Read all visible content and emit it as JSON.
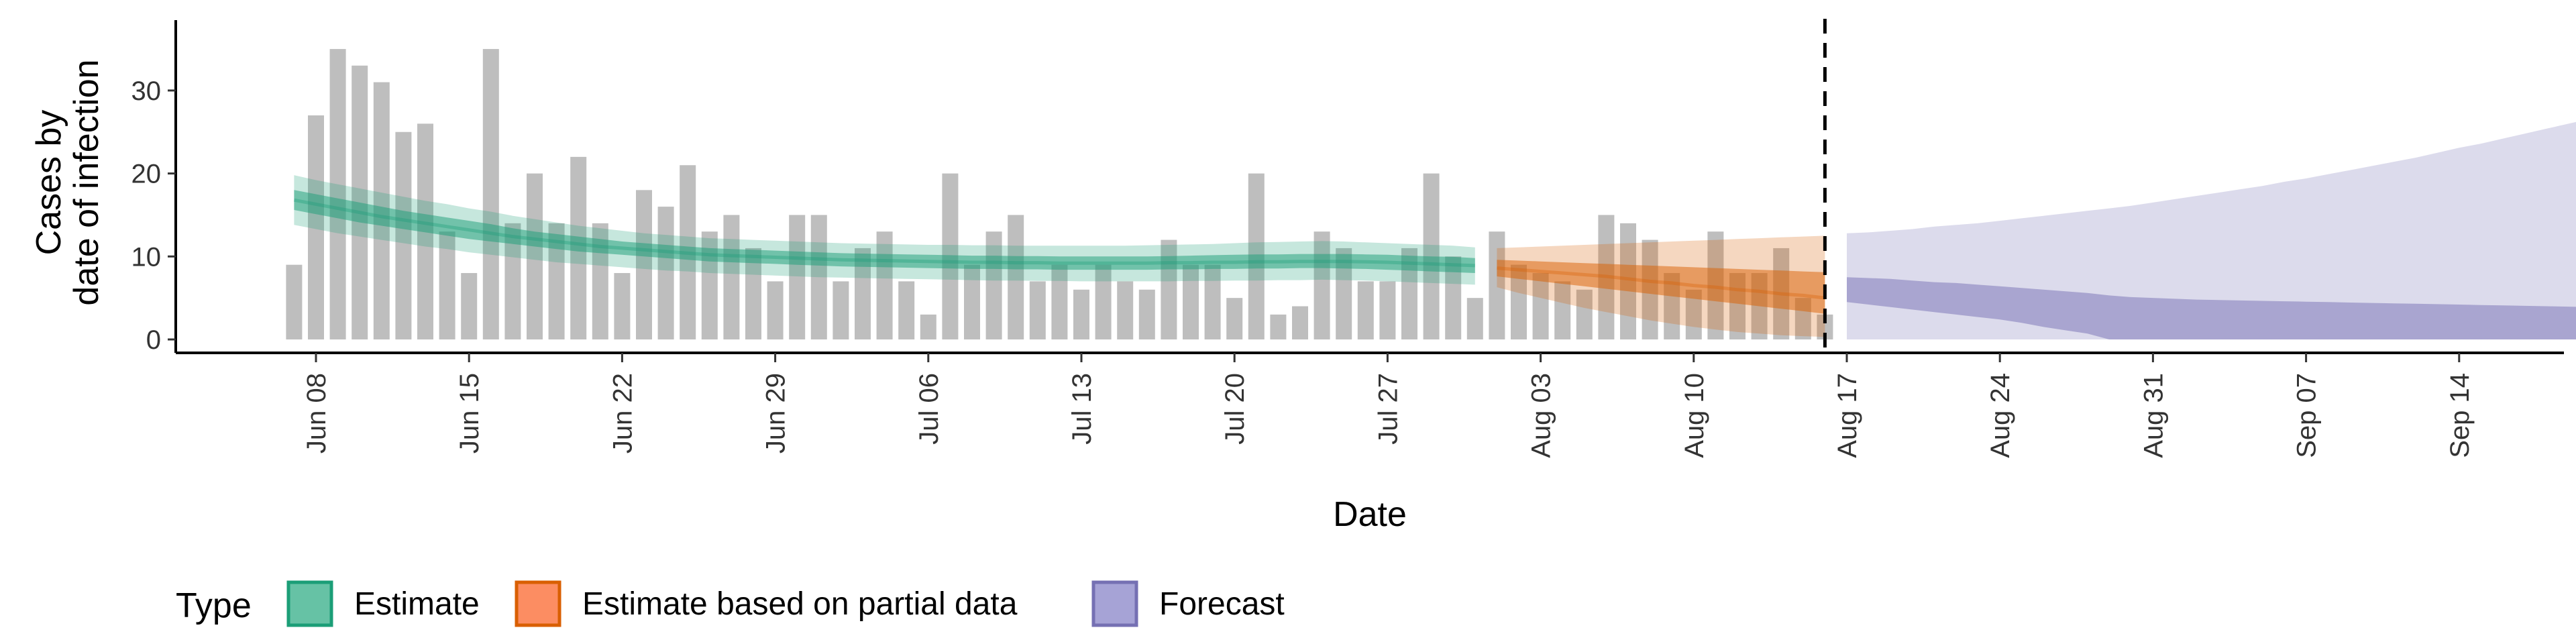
{
  "chart_data": {
    "type": "bar",
    "title": "",
    "xlabel": "Date",
    "ylabel_line1": "Cases by",
    "ylabel_line2": "date of infection",
    "ylim": [
      -2,
      38
    ],
    "y_ticks": [
      0,
      10,
      20,
      30
    ],
    "grid": false,
    "legend": {
      "position": "bottom-left",
      "title": "Type",
      "entries": [
        {
          "label": "Estimate",
          "fill": "#66c2a5",
          "stroke": "#1b9e77"
        },
        {
          "label": "Estimate based on partial data",
          "fill": "#fc8d62",
          "stroke": "#d95f02"
        },
        {
          "label": "Forecast",
          "fill": "#a6a3d6",
          "stroke": "#7570b3"
        }
      ]
    },
    "x_tick_labels": [
      "Jun 08",
      "Jun 15",
      "Jun 22",
      "Jun 29",
      "Jul 06",
      "Jul 13",
      "Jul 20",
      "Jul 27",
      "Aug 03",
      "Aug 10",
      "Aug 17",
      "Aug 24",
      "Aug 31",
      "Sep 07",
      "Sep 14"
    ],
    "first_bar_date": "Jun 07",
    "forecast_start_marker": "Aug 16",
    "bars": {
      "name": "Reported cases",
      "color": "#bebebe",
      "values": [
        9,
        27,
        35,
        33,
        31,
        25,
        26,
        13,
        8,
        35,
        14,
        20,
        14,
        22,
        14,
        8,
        18,
        16,
        21,
        13,
        15,
        11,
        7,
        15,
        15,
        7,
        11,
        13,
        7,
        3,
        20,
        9,
        13,
        15,
        7,
        9,
        6,
        9,
        7,
        6,
        12,
        9,
        9,
        5,
        20,
        3,
        4,
        13,
        11,
        7,
        7,
        11,
        20,
        10,
        5,
        13,
        9,
        8,
        7,
        6,
        15,
        14,
        12,
        8,
        6,
        13,
        8,
        8,
        11,
        5,
        3
      ]
    },
    "series": [
      {
        "name": "Estimate",
        "color": "#1b9e77",
        "start_date": "Jun 07",
        "median": [
          16.8,
          16.3,
          15.8,
          15.3,
          14.8,
          14.4,
          14.0,
          13.6,
          13.2,
          12.8,
          12.4,
          12.1,
          11.8,
          11.5,
          11.2,
          11.0,
          10.8,
          10.6,
          10.4,
          10.2,
          10.1,
          10.0,
          9.9,
          9.8,
          9.7,
          9.6,
          9.55,
          9.5,
          9.45,
          9.4,
          9.35,
          9.3,
          9.3,
          9.25,
          9.25,
          9.2,
          9.2,
          9.2,
          9.2,
          9.2,
          9.25,
          9.25,
          9.3,
          9.3,
          9.35,
          9.35,
          9.4,
          9.4,
          9.4,
          9.35,
          9.3,
          9.2,
          9.1,
          9.0,
          8.9
        ],
        "inner_lo": [
          15.6,
          15.1,
          14.6,
          14.1,
          13.7,
          13.3,
          12.9,
          12.5,
          12.1,
          11.8,
          11.5,
          11.2,
          10.9,
          10.6,
          10.4,
          10.2,
          10.0,
          9.8,
          9.6,
          9.4,
          9.3,
          9.2,
          9.1,
          9.0,
          8.9,
          8.8,
          8.75,
          8.7,
          8.65,
          8.6,
          8.55,
          8.5,
          8.5,
          8.45,
          8.45,
          8.4,
          8.4,
          8.4,
          8.4,
          8.4,
          8.45,
          8.45,
          8.5,
          8.5,
          8.55,
          8.55,
          8.6,
          8.6,
          8.55,
          8.5,
          8.4,
          8.3,
          8.2,
          8.1,
          8.0
        ],
        "inner_hi": [
          18.0,
          17.5,
          17.0,
          16.5,
          16.0,
          15.5,
          15.1,
          14.7,
          14.3,
          13.9,
          13.4,
          13.0,
          12.7,
          12.4,
          12.1,
          11.8,
          11.6,
          11.4,
          11.2,
          11.0,
          10.9,
          10.8,
          10.7,
          10.6,
          10.5,
          10.4,
          10.35,
          10.3,
          10.25,
          10.2,
          10.15,
          10.1,
          10.1,
          10.05,
          10.05,
          10.0,
          10.0,
          10.0,
          10.0,
          10.0,
          10.05,
          10.1,
          10.15,
          10.2,
          10.25,
          10.25,
          10.3,
          10.3,
          10.3,
          10.25,
          10.2,
          10.1,
          10.0,
          9.95,
          9.8
        ],
        "outer_lo": [
          13.8,
          13.3,
          12.8,
          12.4,
          12.0,
          11.6,
          11.2,
          10.9,
          10.5,
          10.2,
          9.9,
          9.6,
          9.3,
          9.1,
          8.9,
          8.7,
          8.5,
          8.3,
          8.2,
          8.0,
          7.9,
          7.8,
          7.7,
          7.6,
          7.5,
          7.45,
          7.4,
          7.35,
          7.3,
          7.25,
          7.2,
          7.15,
          7.1,
          7.1,
          7.05,
          7.05,
          7.0,
          7.0,
          7.0,
          7.0,
          7.0,
          7.05,
          7.05,
          7.1,
          7.1,
          7.15,
          7.15,
          7.2,
          7.15,
          7.1,
          7.0,
          6.9,
          6.8,
          6.7,
          6.6
        ],
        "outer_hi": [
          19.8,
          19.2,
          18.7,
          18.2,
          17.7,
          17.2,
          16.7,
          16.3,
          15.8,
          15.4,
          14.9,
          14.5,
          14.1,
          13.7,
          13.4,
          13.1,
          12.8,
          12.6,
          12.4,
          12.2,
          12.1,
          12.0,
          11.9,
          11.8,
          11.7,
          11.6,
          11.55,
          11.5,
          11.45,
          11.4,
          11.4,
          11.35,
          11.35,
          11.3,
          11.3,
          11.3,
          11.3,
          11.3,
          11.3,
          11.35,
          11.4,
          11.45,
          11.5,
          11.6,
          11.7,
          11.75,
          11.8,
          11.85,
          11.8,
          11.7,
          11.6,
          11.5,
          11.4,
          11.3,
          11.1
        ]
      },
      {
        "name": "Estimate based on partial data",
        "color": "#d95f02",
        "start_date": "Aug 01",
        "median": [
          8.6,
          8.4,
          8.2,
          8.0,
          7.8,
          7.6,
          7.3,
          7.0,
          6.8,
          6.5,
          6.3,
          6.0,
          5.8,
          5.5,
          5.3,
          5.0
        ],
        "inner_lo": [
          7.6,
          7.3,
          7.0,
          6.7,
          6.4,
          6.1,
          5.8,
          5.5,
          5.2,
          4.9,
          4.6,
          4.3,
          4.0,
          3.7,
          3.4,
          3.1
        ],
        "inner_hi": [
          9.6,
          9.5,
          9.4,
          9.3,
          9.2,
          9.1,
          9.0,
          8.9,
          8.8,
          8.7,
          8.6,
          8.5,
          8.4,
          8.3,
          8.2,
          8.1
        ],
        "outer_lo": [
          6.3,
          5.6,
          5.0,
          4.4,
          3.8,
          3.3,
          2.8,
          2.3,
          1.9,
          1.5,
          1.2,
          0.9,
          0.7,
          0.5,
          0.4,
          0.3
        ],
        "outer_hi": [
          11.0,
          11.1,
          11.2,
          11.3,
          11.4,
          11.5,
          11.6,
          11.7,
          11.8,
          11.9,
          12.0,
          12.1,
          12.2,
          12.3,
          12.4,
          12.5
        ]
      },
      {
        "name": "Forecast",
        "color": "#7570b3",
        "start_date": "Aug 17",
        "inner_lo": [
          4.5,
          4.2,
          3.9,
          3.6,
          3.3,
          3.0,
          2.7,
          2.4,
          2.0,
          1.5,
          1.1,
          0.7,
          0.0,
          0.0,
          0.0,
          0.0,
          0.0,
          0.0,
          0.0,
          0.0,
          0.0,
          0.0,
          0.0,
          0.0,
          0.0,
          0.0,
          0.0,
          0.0,
          0.0,
          0.0,
          0.0,
          0.0,
          0.0,
          0.0,
          0.0,
          0.0,
          0.0,
          0.0,
          0.0,
          0.0,
          0.0,
          0.0,
          0.0,
          0.0,
          0.0,
          0.0,
          0.0,
          0.0,
          0.0,
          0.0,
          0.0,
          0.0,
          0.0,
          0.0,
          0.0
        ],
        "inner_hi": [
          7.5,
          7.4,
          7.3,
          7.1,
          6.9,
          6.8,
          6.6,
          6.4,
          6.2,
          6.0,
          5.8,
          5.6,
          5.3,
          5.1,
          5.0,
          4.9,
          4.8,
          4.75,
          4.7,
          4.65,
          4.6,
          4.55,
          4.5,
          4.45,
          4.4,
          4.35,
          4.3,
          4.25,
          4.2,
          4.15,
          4.1,
          4.05,
          4.0,
          3.95,
          3.9,
          3.85,
          3.85,
          3.8,
          3.8,
          3.75,
          3.75,
          3.7,
          3.7,
          3.65,
          3.65,
          3.6,
          3.6,
          3.6,
          3.55,
          3.55,
          3.55,
          3.5,
          3.5,
          3.5,
          3.5
        ],
        "outer_lo": [
          0,
          0,
          0,
          0,
          0,
          0,
          0,
          0,
          0,
          0,
          0,
          0,
          0,
          0,
          0,
          0,
          0,
          0,
          0,
          0,
          0,
          0,
          0,
          0,
          0,
          0,
          0,
          0,
          0,
          0,
          0,
          0,
          0,
          0,
          0,
          0,
          0,
          0,
          0,
          0,
          0,
          0,
          0,
          0,
          0,
          0,
          0,
          0,
          0,
          0,
          0,
          0,
          0,
          0,
          0
        ],
        "outer_hi": [
          12.8,
          12.9,
          13.1,
          13.3,
          13.6,
          13.8,
          14.0,
          14.3,
          14.6,
          14.9,
          15.2,
          15.5,
          15.8,
          16.1,
          16.5,
          16.9,
          17.3,
          17.7,
          18.1,
          18.5,
          19.0,
          19.4,
          19.9,
          20.4,
          20.9,
          21.4,
          21.9,
          22.5,
          23.1,
          23.6,
          24.2,
          24.8,
          25.4,
          26.0,
          26.6,
          27.2,
          27.8,
          28.4,
          29.0,
          29.7,
          30.4,
          31.0,
          31.6,
          32.1,
          32.6,
          33.2,
          33.8,
          34.4,
          35.1,
          35.8,
          36.2,
          36.4,
          36.6,
          36.7,
          36.8
        ]
      }
    ]
  }
}
